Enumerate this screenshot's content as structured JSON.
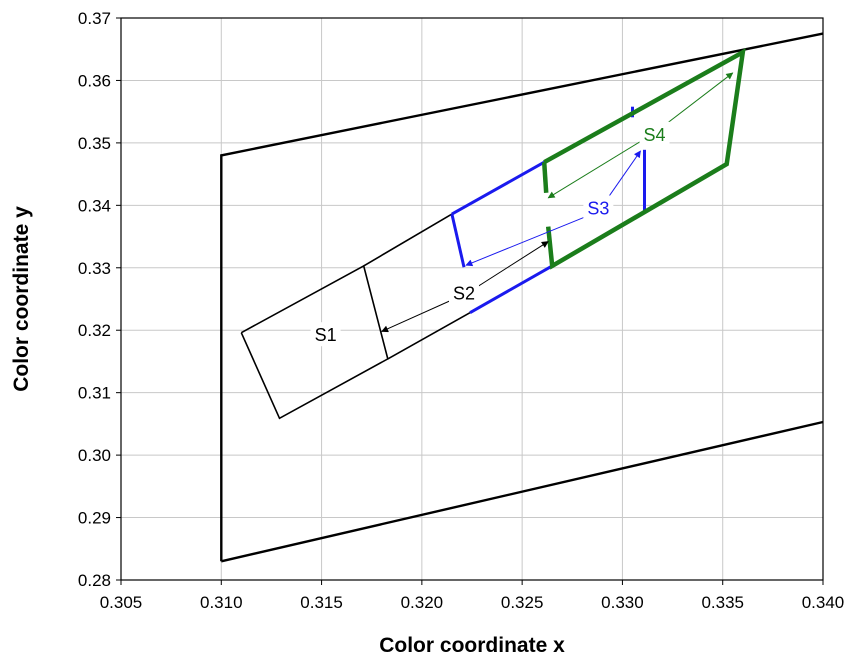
{
  "chart_data": {
    "type": "line",
    "xlabel": "Color coordinate x",
    "ylabel": "Color coordinate y",
    "xlim": [
      0.305,
      0.34
    ],
    "ylim": [
      0.28,
      0.37
    ],
    "x_ticks": [
      "0.305",
      "0.310",
      "0.315",
      "0.320",
      "0.325",
      "0.330",
      "0.335",
      "0.340"
    ],
    "y_ticks": [
      "0.28",
      "0.29",
      "0.30",
      "0.31",
      "0.32",
      "0.33",
      "0.34",
      "0.35",
      "0.36",
      "0.37"
    ],
    "grid": true,
    "colors": {
      "black": "#000000",
      "blue": "#1a1aee",
      "green": "#1b7d1b",
      "grid": "#c8c8c8"
    },
    "series": [
      {
        "points": [
          [
            0.31,
            0.283
          ],
          [
            0.31,
            0.348
          ],
          [
            0.34,
            0.3675
          ]
        ]
      },
      {
        "points": [
          [
            0.31,
            0.283
          ],
          [
            0.34,
            0.3053
          ]
        ]
      },
      {
        "points": [
          [
            0.311,
            0.3196
          ],
          [
            0.3171,
            0.3303
          ],
          [
            0.3183,
            0.3154
          ],
          [
            0.3129,
            0.3059
          ],
          [
            0.311,
            0.3196
          ]
        ]
      },
      {
        "points": [
          [
            0.3171,
            0.3303
          ],
          [
            0.3215,
            0.3386
          ]
        ]
      },
      {
        "points": [
          [
            0.3183,
            0.3154
          ],
          [
            0.3224,
            0.3228
          ]
        ]
      },
      {
        "points": [
          [
            0.3215,
            0.3386
          ],
          [
            0.3221,
            0.3301
          ]
        ]
      },
      {
        "points": [
          [
            0.3215,
            0.3386
          ],
          [
            0.3261,
            0.3469
          ]
        ]
      },
      {
        "points": [
          [
            0.3224,
            0.3228
          ],
          [
            0.3265,
            0.3303
          ]
        ]
      },
      {
        "points": [
          [
            0.3305,
            0.3558
          ],
          [
            0.3305,
            0.3541
          ]
        ]
      },
      {
        "points": [
          [
            0.3311,
            0.3489
          ],
          [
            0.3311,
            0.3387
          ]
        ]
      },
      {
        "points": [
          [
            0.3261,
            0.3469
          ],
          [
            0.336,
            0.3645
          ],
          [
            0.3352,
            0.3466
          ],
          [
            0.3265,
            0.3303
          ],
          [
            0.3263,
            0.3366
          ]
        ]
      },
      {
        "points": [
          [
            0.3261,
            0.3469
          ],
          [
            0.3262,
            0.342
          ]
        ]
      }
    ],
    "annotations": [
      {
        "text": "S1",
        "x": 0.3152,
        "y": 0.3192,
        "color": "#000000"
      },
      {
        "text": "S2",
        "x": 0.3221,
        "y": 0.3259,
        "color": "#000000"
      },
      {
        "text": "S3",
        "x": 0.3288,
        "y": 0.3395,
        "color": "#1a1aee"
      },
      {
        "text": "S4",
        "x": 0.3316,
        "y": 0.3513,
        "color": "#1b7d1b"
      }
    ],
    "arrows": [
      {
        "from": [
          0.3223,
          0.326
        ],
        "to": [
          0.318,
          0.3198
        ],
        "color": "#000000"
      },
      {
        "from": [
          0.3223,
          0.326
        ],
        "to": [
          0.3263,
          0.3342
        ],
        "color": "#000000"
      },
      {
        "from": [
          0.3288,
          0.339
        ],
        "to": [
          0.3222,
          0.3304
        ],
        "color": "#1a1aee"
      },
      {
        "from": [
          0.3288,
          0.339
        ],
        "to": [
          0.3309,
          0.3487
        ],
        "color": "#1a1aee"
      },
      {
        "from": [
          0.3316,
          0.3516
        ],
        "to": [
          0.3263,
          0.3412
        ],
        "color": "#1b7d1b"
      },
      {
        "from": [
          0.3316,
          0.3516
        ],
        "to": [
          0.3355,
          0.3612
        ],
        "color": "#1b7d1b"
      }
    ]
  }
}
